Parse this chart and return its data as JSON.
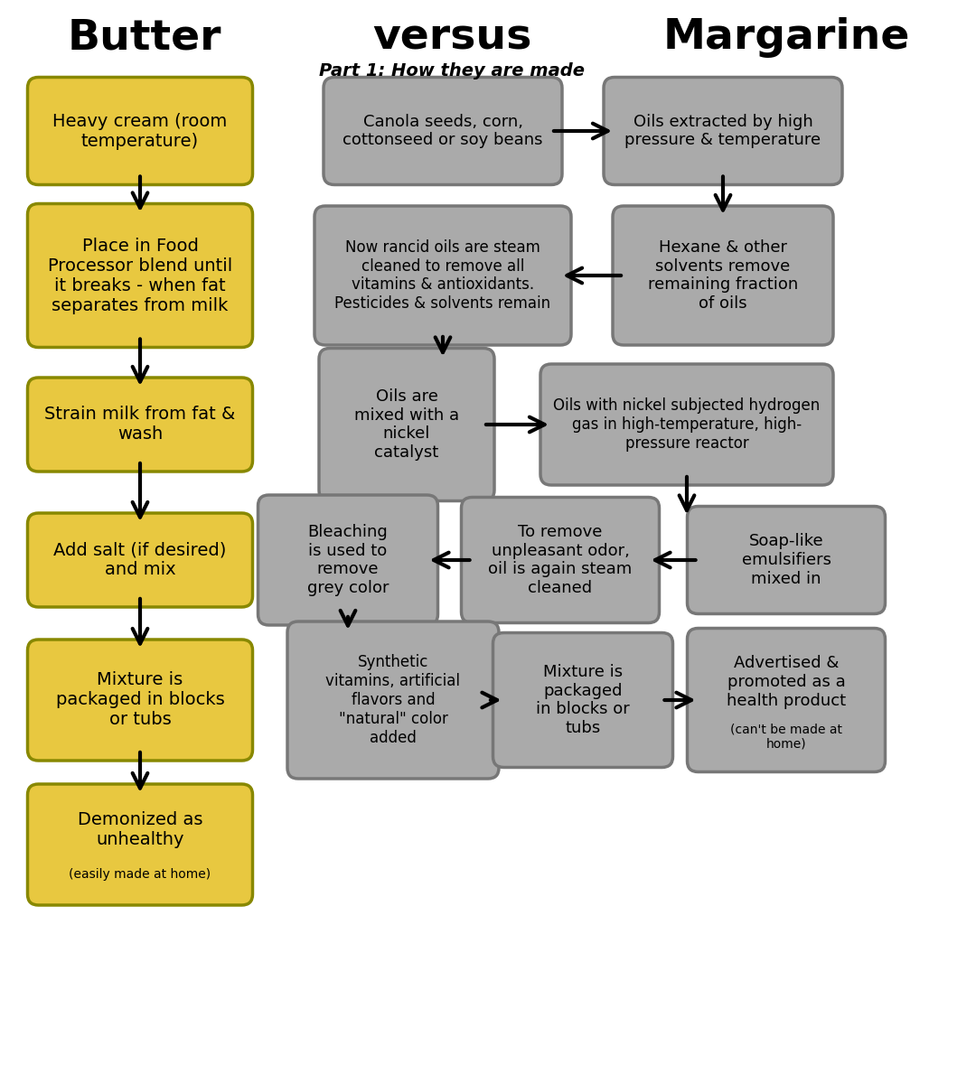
{
  "title_butter": "Butter",
  "title_versus": "versus",
  "title_margarine": "Margarine",
  "subtitle": "Part 1: How they are made",
  "butter_color": "#E8C840",
  "butter_edge": "#888800",
  "margarine_color": "#AAAAAA",
  "margarine_edge": "#777777",
  "bg_color": "#FFFFFF",
  "figw": 10.8,
  "figh": 11.79,
  "dpi": 100
}
